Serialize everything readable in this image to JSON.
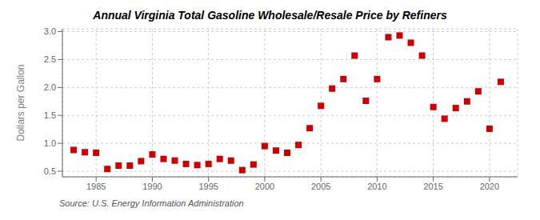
{
  "chart_data": {
    "type": "scatter",
    "title": "Annual Virginia Total Gasoline Wholesale/Resale Price by Refiners",
    "ylabel": "Dollars per Gallon",
    "annotations": [
      "Source: U.S. Energy Information Administration"
    ],
    "x": [
      1983,
      1984,
      1985,
      1986,
      1987,
      1988,
      1989,
      1990,
      1991,
      1992,
      1993,
      1994,
      1995,
      1996,
      1997,
      1998,
      1999,
      2000,
      2001,
      2002,
      2003,
      2004,
      2005,
      2006,
      2007,
      2008,
      2009,
      2010,
      2011,
      2012,
      2013,
      2014,
      2015,
      2016,
      2017,
      2018,
      2019,
      2020,
      2021
    ],
    "values": [
      0.88,
      0.84,
      0.83,
      0.54,
      0.6,
      0.6,
      0.68,
      0.8,
      0.72,
      0.69,
      0.63,
      0.61,
      0.63,
      0.72,
      0.69,
      0.52,
      0.62,
      0.95,
      0.87,
      0.83,
      0.97,
      1.27,
      1.67,
      1.98,
      2.15,
      2.57,
      1.76,
      2.15,
      2.9,
      2.93,
      2.8,
      2.57,
      1.65,
      1.44,
      1.63,
      1.75,
      1.93,
      1.26,
      2.1
    ],
    "color": "#cc0000",
    "marker": "square",
    "xlim": [
      1982.0,
      2022.5
    ],
    "ylim": [
      0.4,
      3.05
    ],
    "xticks": [
      1985,
      1990,
      1995,
      2000,
      2005,
      2010,
      2015,
      2020
    ],
    "yticks": [
      0.5,
      {
        "value": 1.0,
        "label": "1.0"
      },
      1.5,
      {
        "value": 2.0,
        "label": "2.0"
      },
      2.5,
      {
        "value": 3.0,
        "label": "3.0"
      }
    ],
    "grid": true
  }
}
